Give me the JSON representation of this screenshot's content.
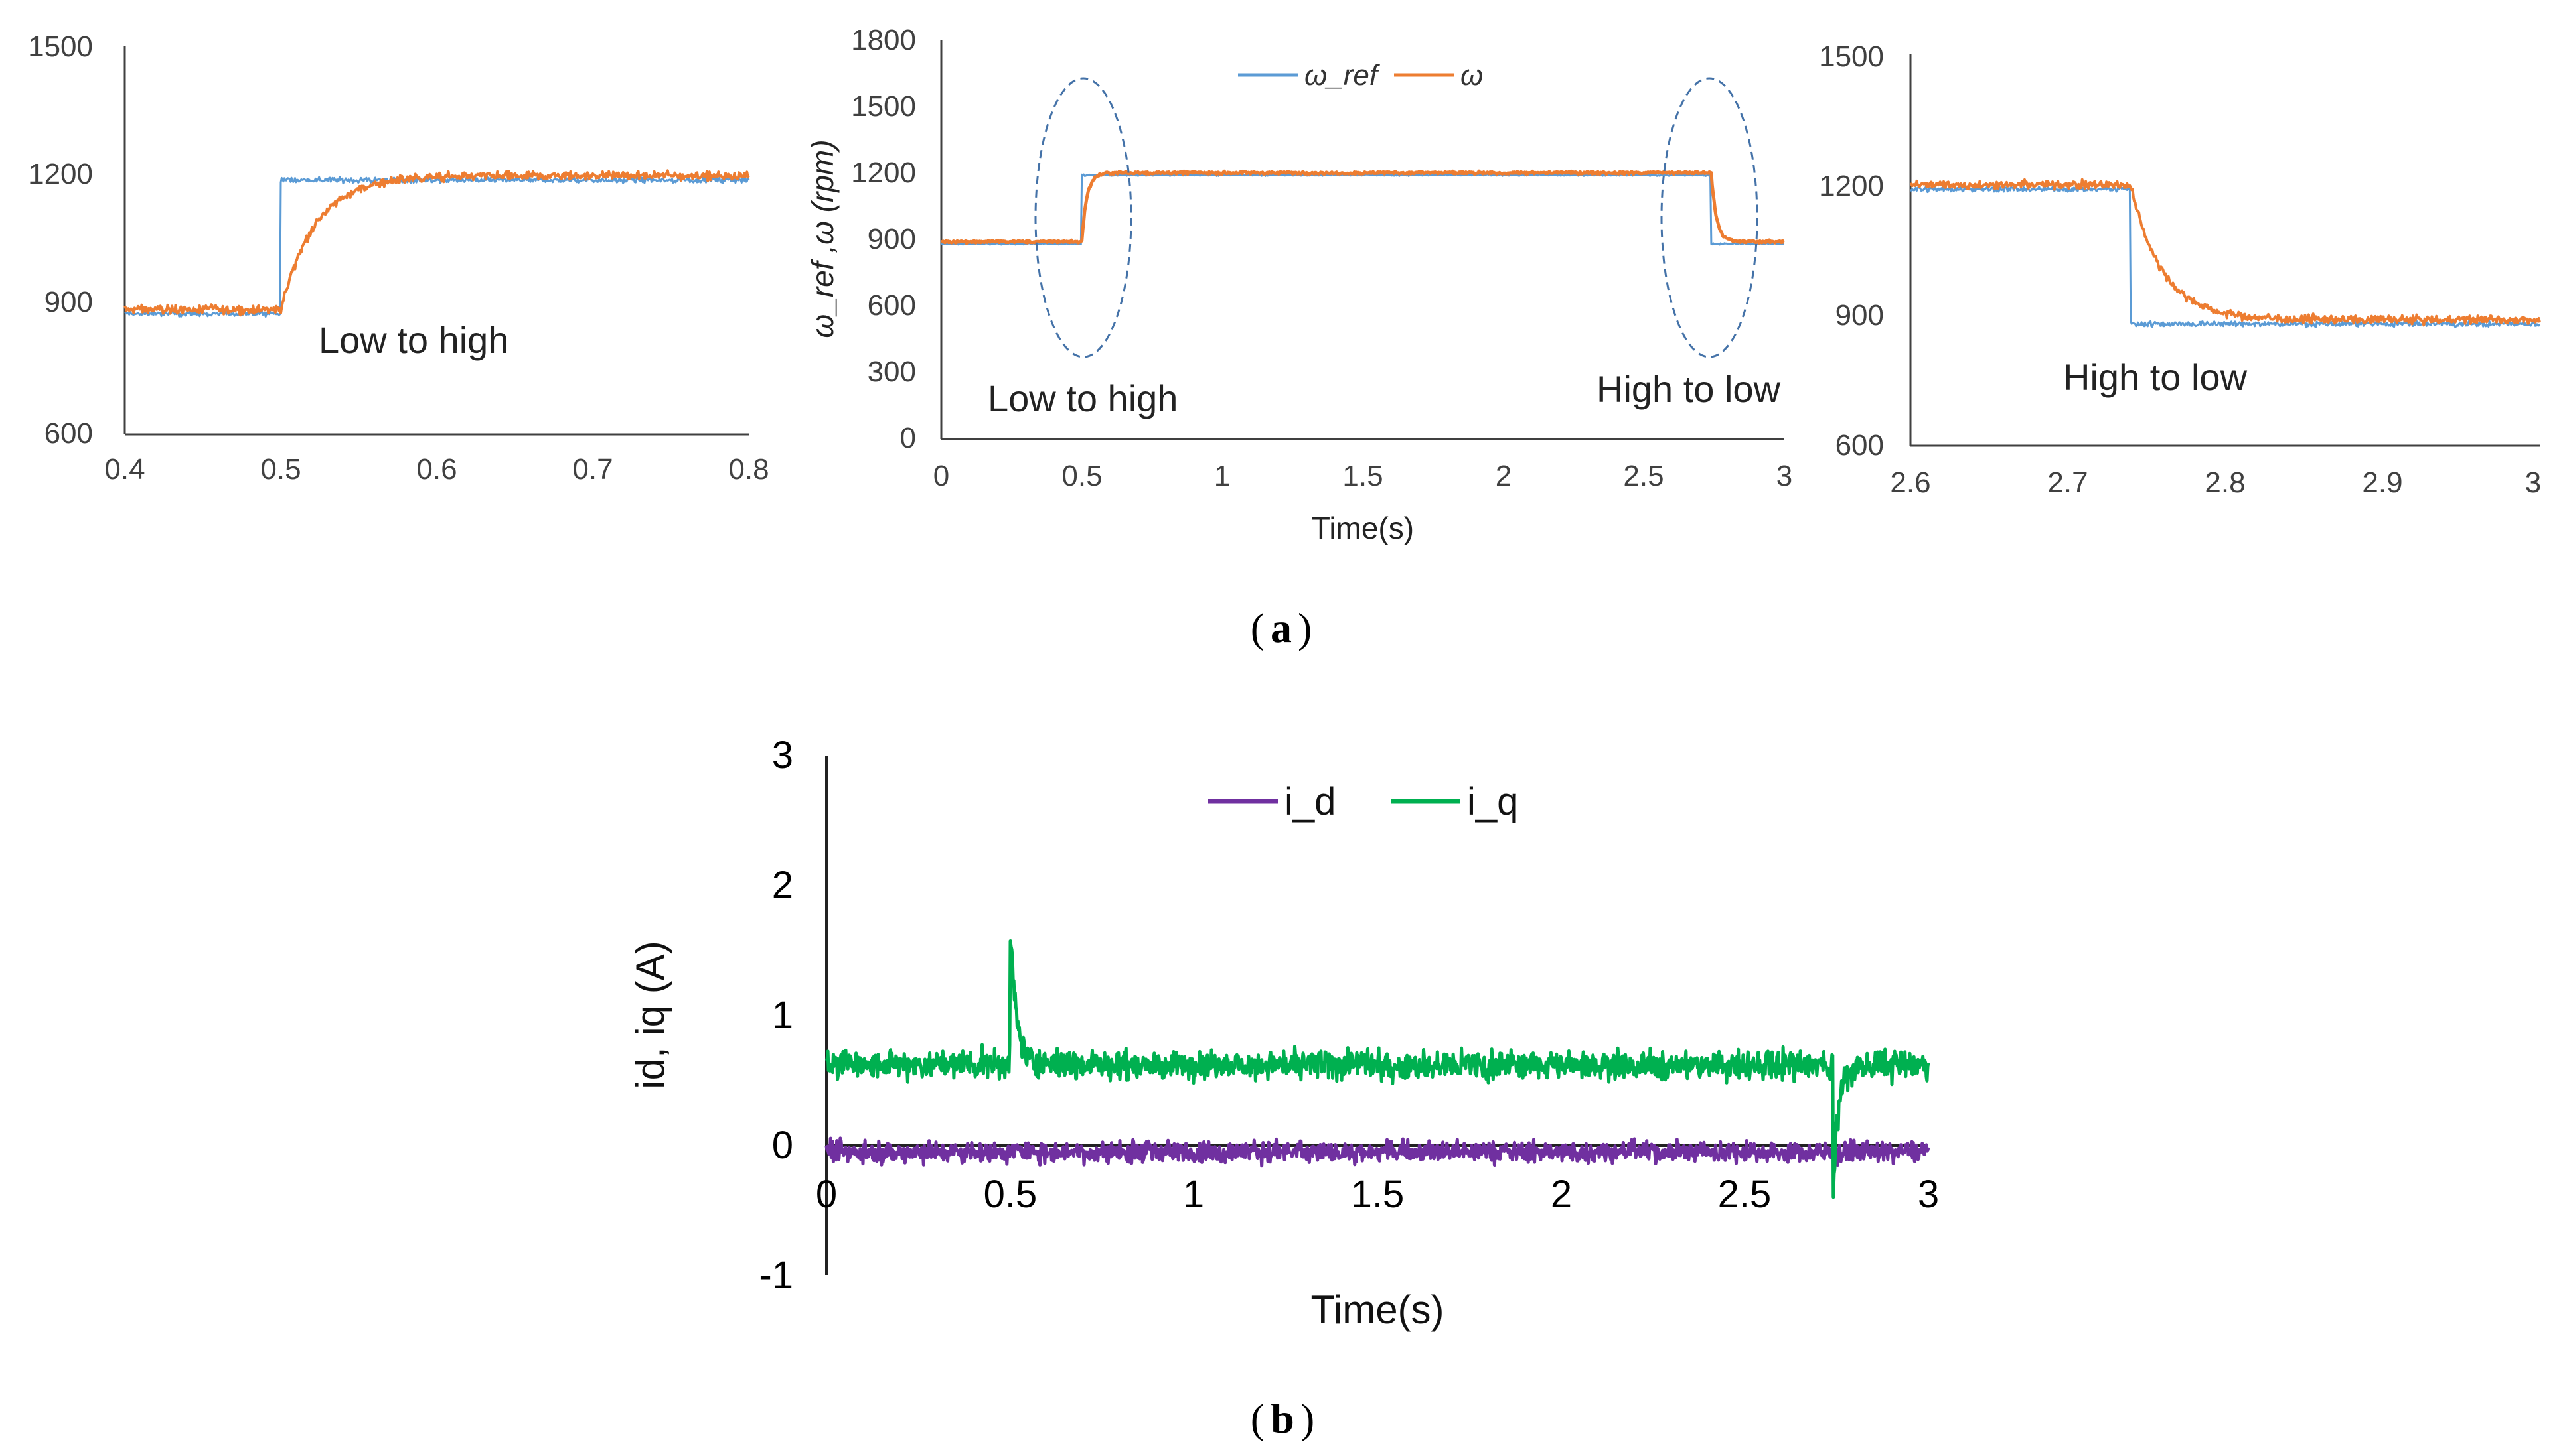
{
  "chart_data": [
    {
      "id": "zoom_low_high",
      "type": "line",
      "xlim": [
        0.4,
        0.8
      ],
      "ylim": [
        600,
        1500
      ],
      "xticks": [
        "0.4",
        "0.5",
        "0.6",
        "0.7",
        "0.8"
      ],
      "yticks": [
        "600",
        "900",
        "1200",
        "1500"
      ],
      "annotation": "Low to high",
      "series": [
        {
          "name": "ω_ref",
          "color": "#5B9BD5",
          "low": 880,
          "high": 1190,
          "step_time": 0.5
        },
        {
          "name": "ω",
          "color": "#ED7D31",
          "low": 890,
          "high": 1200,
          "step_time": 0.5
        }
      ]
    },
    {
      "id": "main_speed",
      "type": "line",
      "xlim": [
        0,
        3
      ],
      "ylim": [
        0,
        1800
      ],
      "xticks": [
        "0",
        "0.5",
        "1",
        "1.5",
        "2",
        "2.5",
        "3"
      ],
      "yticks": [
        "0",
        "300",
        "600",
        "900",
        "1200",
        "1500",
        "1800"
      ],
      "xlabel": "Time(s)",
      "ylabel": "ω_ref ,ω (rpm)",
      "annotations": [
        "Low to high",
        "High to low"
      ],
      "legend": [
        "ω_ref",
        "ω"
      ],
      "series": [
        {
          "name": "ω_ref",
          "color": "#5B9BD5",
          "low": 880,
          "high": 1190,
          "step_up": 0.5,
          "step_down": 2.74
        },
        {
          "name": "ω",
          "color": "#ED7D31",
          "low": 890,
          "high": 1200,
          "step_up": 0.5,
          "step_down": 2.74
        }
      ]
    },
    {
      "id": "zoom_high_low",
      "type": "line",
      "xlim": [
        2.6,
        3
      ],
      "ylim": [
        600,
        1500
      ],
      "xticks": [
        "2.6",
        "2.7",
        "2.8",
        "2.9",
        "3"
      ],
      "yticks": [
        "600",
        "900",
        "1200",
        "1500"
      ],
      "annotation": "High to low",
      "series": [
        {
          "name": "ω_ref",
          "color": "#5B9BD5",
          "low": 880,
          "high": 1190,
          "step_time": 2.74
        },
        {
          "name": "ω",
          "color": "#ED7D31",
          "low": 890,
          "high": 1200,
          "step_time": 2.74
        }
      ]
    },
    {
      "id": "currents",
      "type": "line",
      "xlim": [
        0,
        3
      ],
      "ylim": [
        -1,
        3
      ],
      "xticks": [
        "0",
        "0.5",
        "1",
        "1.5",
        "2",
        "2.5",
        "3"
      ],
      "yticks": [
        "-1",
        "0",
        "1",
        "2",
        "3"
      ],
      "xlabel": "Time(s)",
      "ylabel": "id, iq (A)",
      "legend": [
        "i_d",
        "i_q"
      ],
      "series": [
        {
          "name": "i_d",
          "color": "#7030A0",
          "mean": -0.05,
          "noise": 0.12
        },
        {
          "name": "i_q",
          "color": "#00B050",
          "mean": 0.62,
          "noise": 0.16,
          "spike_time": 0.5,
          "spike_peak": 1.68,
          "dip_time": 2.74,
          "dip_min": -0.38
        }
      ]
    }
  ],
  "captions": {
    "a": "a",
    "b": "b"
  }
}
